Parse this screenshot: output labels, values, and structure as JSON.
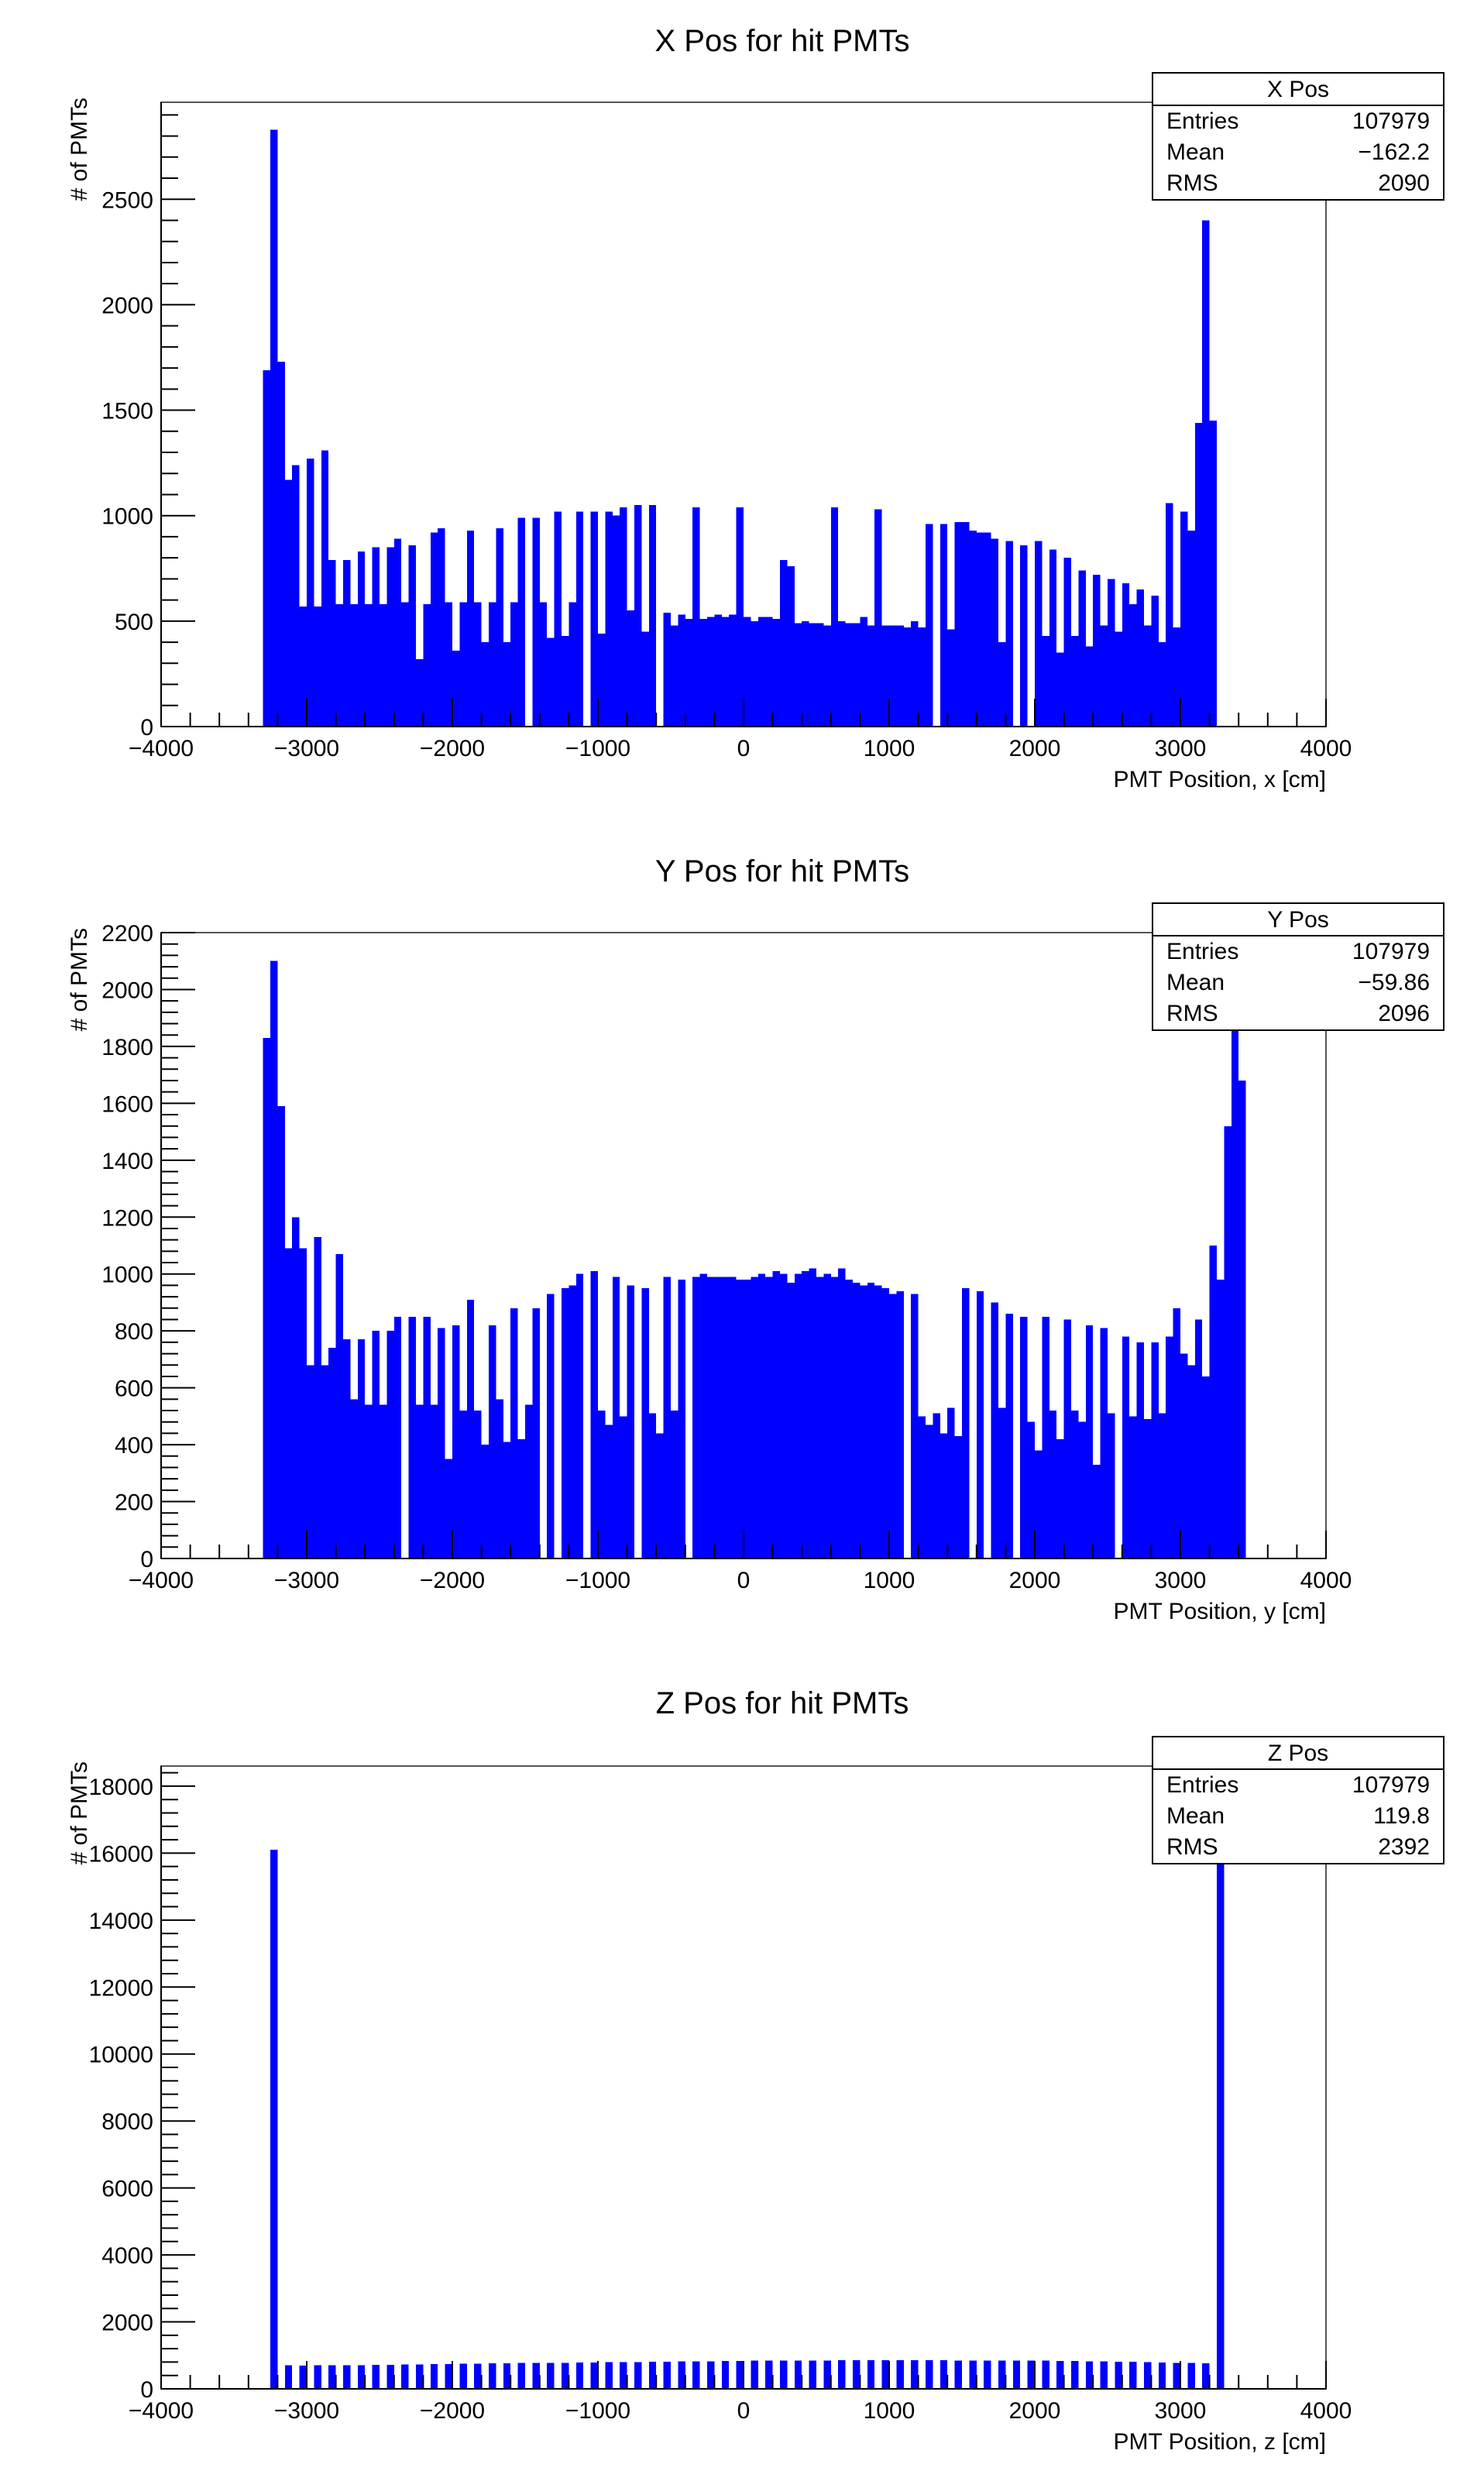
{
  "colors": {
    "bar": "#0000ff",
    "axis": "#000000",
    "frame": "#555555"
  },
  "chart_data": [
    {
      "type": "bar",
      "title": "X Pos for hit PMTs",
      "xlabel": "PMT Position, x [cm]",
      "ylabel": "# of PMTs",
      "xlim": [
        -4000,
        4000
      ],
      "ylim": [
        0,
        2960
      ],
      "xticks": [
        -4000,
        -3000,
        -2000,
        -1000,
        0,
        1000,
        2000,
        3000,
        4000
      ],
      "xtick_labels": [
        "−4000",
        "−3000",
        "−2000",
        "−1000",
        "0",
        "1000",
        "2000",
        "3000",
        "4000"
      ],
      "yticks": [
        0,
        500,
        1000,
        1500,
        2000,
        2500
      ],
      "ytick_labels": [
        "0",
        "500",
        "1000",
        "1500",
        "2000",
        "2500"
      ],
      "bin_start": -3300,
      "bin_width": 50,
      "values": [
        1690,
        2830,
        1730,
        1170,
        1240,
        570,
        1270,
        570,
        1310,
        790,
        580,
        790,
        580,
        830,
        580,
        850,
        580,
        850,
        890,
        590,
        860,
        320,
        580,
        920,
        940,
        590,
        360,
        590,
        930,
        590,
        400,
        590,
        940,
        400,
        590,
        990,
        0,
        990,
        590,
        420,
        1020,
        430,
        590,
        1020,
        0,
        1020,
        440,
        1020,
        1000,
        1040,
        550,
        1050,
        450,
        1050,
        0,
        540,
        480,
        530,
        510,
        1040,
        510,
        520,
        530,
        520,
        530,
        1040,
        520,
        500,
        520,
        520,
        510,
        790,
        760,
        490,
        500,
        490,
        490,
        480,
        1040,
        500,
        490,
        490,
        520,
        480,
        1030,
        480,
        480,
        480,
        470,
        500,
        470,
        960,
        0,
        960,
        460,
        970,
        970,
        930,
        920,
        920,
        890,
        400,
        880,
        0,
        860,
        0,
        880,
        430,
        840,
        350,
        800,
        430,
        740,
        380,
        720,
        480,
        700,
        450,
        680,
        580,
        650,
        480,
        620,
        400,
        1060,
        470,
        1020,
        930,
        1440,
        2400,
        1450
      ],
      "stats": {
        "name": "X Pos",
        "entries": "107979",
        "mean": "−162.2",
        "rms": "2090"
      }
    },
    {
      "type": "bar",
      "title": "Y Pos for hit PMTs",
      "xlabel": "PMT Position, y [cm]",
      "ylabel": "# of PMTs",
      "xlim": [
        -4000,
        4000
      ],
      "ylim": [
        0,
        2200
      ],
      "xticks": [
        -4000,
        -3000,
        -2000,
        -1000,
        0,
        1000,
        2000,
        3000,
        4000
      ],
      "xtick_labels": [
        "−4000",
        "−3000",
        "−2000",
        "−1000",
        "0",
        "1000",
        "2000",
        "3000",
        "4000"
      ],
      "yticks": [
        0,
        200,
        400,
        600,
        800,
        1000,
        1200,
        1400,
        1600,
        1800,
        2000,
        2200
      ],
      "ytick_labels": [
        "0",
        "200",
        "400",
        "600",
        "800",
        "1000",
        "1200",
        "1400",
        "1600",
        "1800",
        "2000",
        "2200"
      ],
      "bin_start": -3300,
      "bin_width": 50,
      "values": [
        1830,
        2100,
        1590,
        1090,
        1200,
        1090,
        680,
        1130,
        680,
        740,
        1070,
        770,
        560,
        770,
        540,
        800,
        540,
        800,
        850,
        0,
        850,
        540,
        850,
        540,
        810,
        350,
        820,
        520,
        910,
        520,
        400,
        820,
        560,
        410,
        880,
        420,
        540,
        880,
        0,
        930,
        0,
        950,
        960,
        1000,
        0,
        1010,
        520,
        470,
        990,
        500,
        960,
        0,
        950,
        510,
        440,
        990,
        520,
        980,
        0,
        990,
        1000,
        990,
        990,
        990,
        990,
        980,
        980,
        990,
        1000,
        990,
        1010,
        1000,
        970,
        1000,
        1010,
        1020,
        990,
        1000,
        990,
        1020,
        980,
        970,
        960,
        970,
        960,
        950,
        930,
        940,
        0,
        930,
        500,
        470,
        510,
        440,
        530,
        430,
        950,
        0,
        940,
        0,
        900,
        530,
        860,
        0,
        850,
        480,
        380,
        850,
        520,
        420,
        840,
        520,
        480,
        820,
        330,
        810,
        510,
        0,
        780,
        500,
        760,
        490,
        760,
        510,
        780,
        880,
        720,
        680,
        840,
        640,
        1100,
        980,
        1520,
        1860,
        1680
      ],
      "stats": {
        "name": "Y Pos",
        "entries": "107979",
        "mean": "−59.86",
        "rms": "2096"
      }
    },
    {
      "type": "bar",
      "title": "Z Pos for hit PMTs",
      "xlabel": "PMT Position, z [cm]",
      "ylabel": "# of PMTs",
      "xlim": [
        -4000,
        4000
      ],
      "ylim": [
        0,
        18600
      ],
      "xticks": [
        -4000,
        -3000,
        -2000,
        -1000,
        0,
        1000,
        2000,
        3000,
        4000
      ],
      "xtick_labels": [
        "−4000",
        "−3000",
        "−2000",
        "−1000",
        "0",
        "1000",
        "2000",
        "3000",
        "4000"
      ],
      "yticks": [
        0,
        2000,
        4000,
        6000,
        8000,
        10000,
        12000,
        14000,
        16000,
        18000
      ],
      "ytick_labels": [
        "0",
        "2000",
        "4000",
        "6000",
        "8000",
        "10000",
        "12000",
        "14000",
        "16000",
        "18000"
      ],
      "bin_start": -3300,
      "bin_width": 50,
      "values": [
        0,
        16100,
        0,
        700,
        0,
        690,
        0,
        700,
        0,
        700,
        0,
        710,
        0,
        710,
        0,
        720,
        0,
        720,
        0,
        730,
        0,
        730,
        0,
        740,
        0,
        740,
        0,
        750,
        0,
        750,
        0,
        760,
        0,
        760,
        0,
        770,
        0,
        770,
        0,
        780,
        0,
        780,
        0,
        790,
        0,
        790,
        0,
        800,
        0,
        800,
        0,
        800,
        0,
        810,
        0,
        810,
        0,
        820,
        0,
        820,
        0,
        820,
        0,
        830,
        0,
        830,
        0,
        840,
        0,
        840,
        0,
        840,
        0,
        850,
        0,
        850,
        0,
        850,
        0,
        860,
        0,
        860,
        0,
        860,
        0,
        860,
        0,
        860,
        0,
        860,
        0,
        860,
        0,
        860,
        0,
        850,
        0,
        850,
        0,
        850,
        0,
        850,
        0,
        840,
        0,
        840,
        0,
        840,
        0,
        830,
        0,
        830,
        0,
        820,
        0,
        820,
        0,
        810,
        0,
        810,
        0,
        800,
        0,
        790,
        0,
        780,
        0,
        770,
        0,
        760,
        0,
        16700
      ],
      "stats": {
        "name": "Z Pos",
        "entries": "107979",
        "mean": "119.8",
        "rms": "2392"
      }
    }
  ],
  "stats_labels": {
    "entries": "Entries",
    "mean": "Mean",
    "rms": "RMS"
  }
}
